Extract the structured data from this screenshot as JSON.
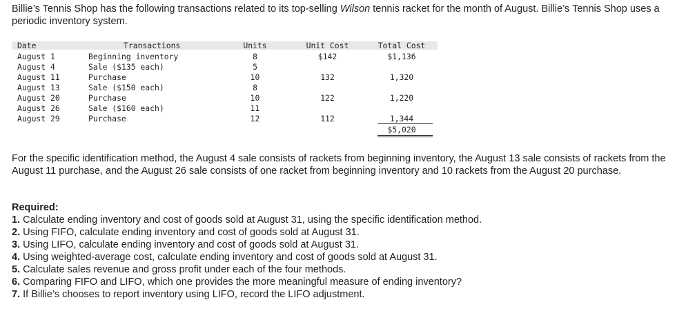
{
  "intro": {
    "part1": "Billie’s Tennis Shop has the following transactions related to its top-selling ",
    "brand": "Wilson",
    "part2": " tennis racket for the month of August. Billie’s Tennis Shop uses a periodic inventory system."
  },
  "table": {
    "headers": {
      "date": "Date",
      "transactions": "Transactions",
      "units": "Units",
      "unit_cost": "Unit Cost",
      "total_cost": "Total Cost"
    },
    "rows": [
      {
        "date": "August 1",
        "transaction": "Beginning inventory",
        "units": "8",
        "unit_cost": "$142",
        "total_cost": "$1,136"
      },
      {
        "date": "August 4",
        "transaction": "Sale ($135 each)",
        "units": "5",
        "unit_cost": "",
        "total_cost": ""
      },
      {
        "date": "August 11",
        "transaction": "Purchase",
        "units": "10",
        "unit_cost": "132",
        "total_cost": "1,320"
      },
      {
        "date": "August 13",
        "transaction": "Sale ($150 each)",
        "units": "8",
        "unit_cost": "",
        "total_cost": ""
      },
      {
        "date": "August 20",
        "transaction": "Purchase",
        "units": "10",
        "unit_cost": "122",
        "total_cost": "1,220"
      },
      {
        "date": "August 26",
        "transaction": "Sale ($160 each)",
        "units": "11",
        "unit_cost": "",
        "total_cost": ""
      },
      {
        "date": "August 29",
        "transaction": "Purchase",
        "units": "12",
        "unit_cost": "112",
        "total_cost": "1,344"
      }
    ],
    "grand_total": "$5,020"
  },
  "method_text": "For the specific identification method, the August 4 sale consists of rackets from beginning inventory, the August 13 sale consists of rackets from the August 11 purchase, and the August 26 sale consists of one racket from beginning inventory and 10 rackets from the August 20 purchase.",
  "required": {
    "title": "Required:",
    "items": [
      {
        "num": "1.",
        "text": "Calculate ending inventory and cost of goods sold at August 31, using the specific identification method."
      },
      {
        "num": "2.",
        "text": "Using FIFO, calculate ending inventory and cost of goods sold at August 31."
      },
      {
        "num": "3.",
        "text": "Using LIFO, calculate ending inventory and cost of goods sold at August 31."
      },
      {
        "num": "4.",
        "text": "Using weighted-average cost, calculate ending inventory and cost of goods sold at August 31."
      },
      {
        "num": "5.",
        "text": "Calculate sales revenue and gross profit under each of the four methods."
      },
      {
        "num": "6.",
        "text": "Comparing FIFO and LIFO, which one provides the more meaningful measure of ending inventory?"
      },
      {
        "num": "7.",
        "text": "If Billie’s chooses to report inventory using LIFO, record the LIFO adjustment."
      }
    ]
  }
}
